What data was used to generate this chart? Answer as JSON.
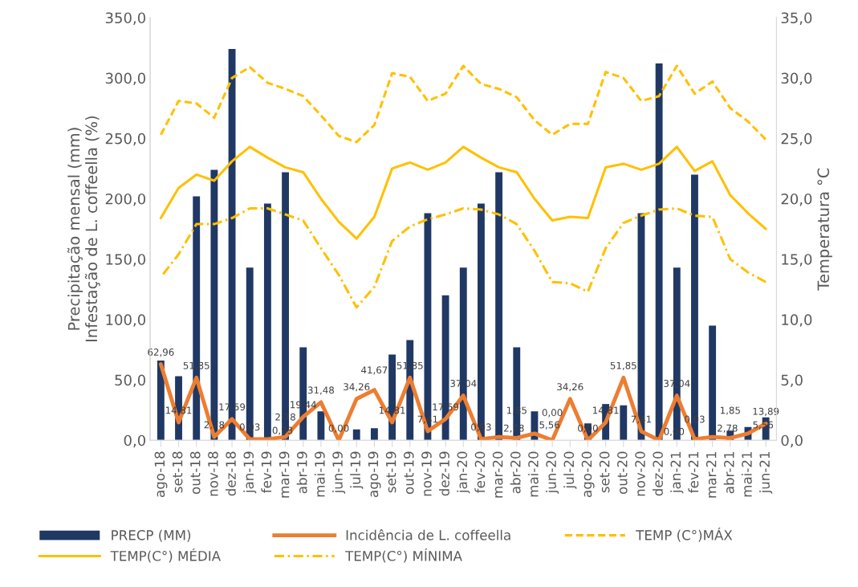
{
  "chart_data": {
    "type": "bar",
    "categories": [
      "ago-18",
      "set-18",
      "out-18",
      "nov-18",
      "dez-18",
      "jan-19",
      "fev-19",
      "mar-19",
      "abr-19",
      "mai-19",
      "jun-19",
      "jul-19",
      "ago-19",
      "set-19",
      "out-19",
      "nov-19",
      "dez-19",
      "jan-20",
      "fev-20",
      "mar-20",
      "abr-20",
      "mai-20",
      "jun-20",
      "jul-20",
      "ago-20",
      "set-20",
      "out-20",
      "nov-20",
      "dez-20",
      "jan-21",
      "fev-21",
      "mar-21",
      "abr-21",
      "mai-21",
      "jun-21"
    ],
    "ylabel": "Precipitação mensal (mm)\nInfestação de L. coffeella (%)",
    "y2label": "Temperatura °C",
    "ylim": [
      0,
      350
    ],
    "yticks": [
      {
        "value": 0,
        "label": "0,0"
      },
      {
        "value": 50,
        "label": "50,0"
      },
      {
        "value": 100,
        "label": "100,0"
      },
      {
        "value": 150,
        "label": "150,0"
      },
      {
        "value": 200,
        "label": "200,0"
      },
      {
        "value": 250,
        "label": "250,0"
      },
      {
        "value": 300,
        "label": "300,0"
      },
      {
        "value": 350,
        "label": "350,0"
      }
    ],
    "y2lim": [
      0,
      35
    ],
    "y2ticks": [
      {
        "value": 0,
        "label": "0,0"
      },
      {
        "value": 5,
        "label": "5,0"
      },
      {
        "value": 10,
        "label": "10,0"
      },
      {
        "value": 15,
        "label": "15,0"
      },
      {
        "value": 20,
        "label": "20,0"
      },
      {
        "value": 25,
        "label": "25,0"
      },
      {
        "value": 30,
        "label": "30,0"
      },
      {
        "value": 35,
        "label": "35,0"
      }
    ],
    "grid": false,
    "legend": "bottom",
    "series": [
      {
        "name": "PRECP (MM)",
        "color": "#203864",
        "values": [
          66,
          53,
          202,
          224,
          324,
          143,
          196,
          222,
          77,
          24,
          0,
          9,
          10,
          71,
          83,
          188,
          120,
          143,
          196,
          222,
          77,
          24,
          0,
          0,
          14,
          30,
          29,
          188,
          312,
          143,
          220,
          95,
          8,
          11,
          19
        ]
      },
      {
        "name": "Incidência de L. coffeella",
        "type": "line",
        "color": "#ed7d31",
        "line_style": "solid",
        "values": [
          62.96,
          14.81,
          51.85,
          2.78,
          17.59,
          0.93,
          0.93,
          2.78,
          19.44,
          31.48,
          0.0,
          34.26,
          41.67,
          14.81,
          51.85,
          7.41,
          17.59,
          37.04,
          0.93,
          2.78,
          1.85,
          5.56,
          0.0,
          34.26,
          0.0,
          14.81,
          51.85,
          7.41,
          0.0,
          37.04,
          0.93,
          2.78,
          1.85,
          5.56,
          13.89
        ],
        "value_labels": [
          "62,96",
          "14,81",
          "51,85",
          "2,78",
          "17,59",
          "0,93",
          "0,93",
          "2,78",
          "19,44",
          "31,48",
          "0,00",
          "34,26",
          "41,67",
          "14,81",
          "51,85",
          "7,41",
          "17,59",
          "37,04",
          "0,93",
          "2,78",
          "1,85",
          "5,56",
          "0,00",
          "34,26",
          "0,00",
          "14,81",
          "51,85",
          "7,41",
          "0,00",
          "37,04",
          "0,93",
          "2,78",
          "1,85",
          "5,56",
          "13,89"
        ]
      },
      {
        "name": "TEMP (C°)MÁX",
        "type": "line",
        "axis": "y2",
        "color": "#ffc000",
        "line_style": "dashed",
        "values": [
          25.3,
          28.1,
          27.9,
          26.7,
          30.0,
          30.9,
          29.6,
          29.1,
          28.5,
          26.9,
          25.2,
          24.7,
          26.1,
          30.4,
          30.1,
          28.1,
          28.7,
          31.0,
          29.5,
          29.1,
          28.4,
          26.5,
          25.3,
          26.2,
          26.2,
          30.5,
          30.0,
          28.1,
          28.5,
          31.0,
          28.7,
          29.7,
          27.5,
          26.4,
          24.9
        ]
      },
      {
        "name": "TEMP(C°) MÉDIA",
        "type": "line",
        "axis": "y2",
        "color": "#ffc000",
        "line_style": "solid",
        "values": [
          18.4,
          20.9,
          22.0,
          21.5,
          23.1,
          24.3,
          23.4,
          22.6,
          22.2,
          20.0,
          18.1,
          16.7,
          18.5,
          22.5,
          23.0,
          22.4,
          23.0,
          24.3,
          23.4,
          22.6,
          22.2,
          20.0,
          18.2,
          18.5,
          18.4,
          22.6,
          22.9,
          22.4,
          22.9,
          24.3,
          22.3,
          23.1,
          20.3,
          18.8,
          17.5
        ]
      },
      {
        "name": "TEMP(C°) MÍNIMA",
        "type": "line",
        "axis": "y2",
        "color": "#ffc000",
        "line_style": "dashdot",
        "values": [
          13.5,
          15.4,
          17.9,
          17.9,
          18.4,
          19.2,
          19.2,
          18.7,
          18.2,
          15.9,
          13.7,
          11.0,
          12.7,
          16.5,
          17.7,
          18.3,
          18.7,
          19.2,
          19.1,
          18.7,
          17.9,
          15.7,
          13.1,
          13.0,
          12.3,
          15.9,
          18.0,
          18.6,
          19.1,
          19.2,
          18.6,
          18.5,
          15.0,
          13.9,
          13.1
        ]
      }
    ]
  }
}
